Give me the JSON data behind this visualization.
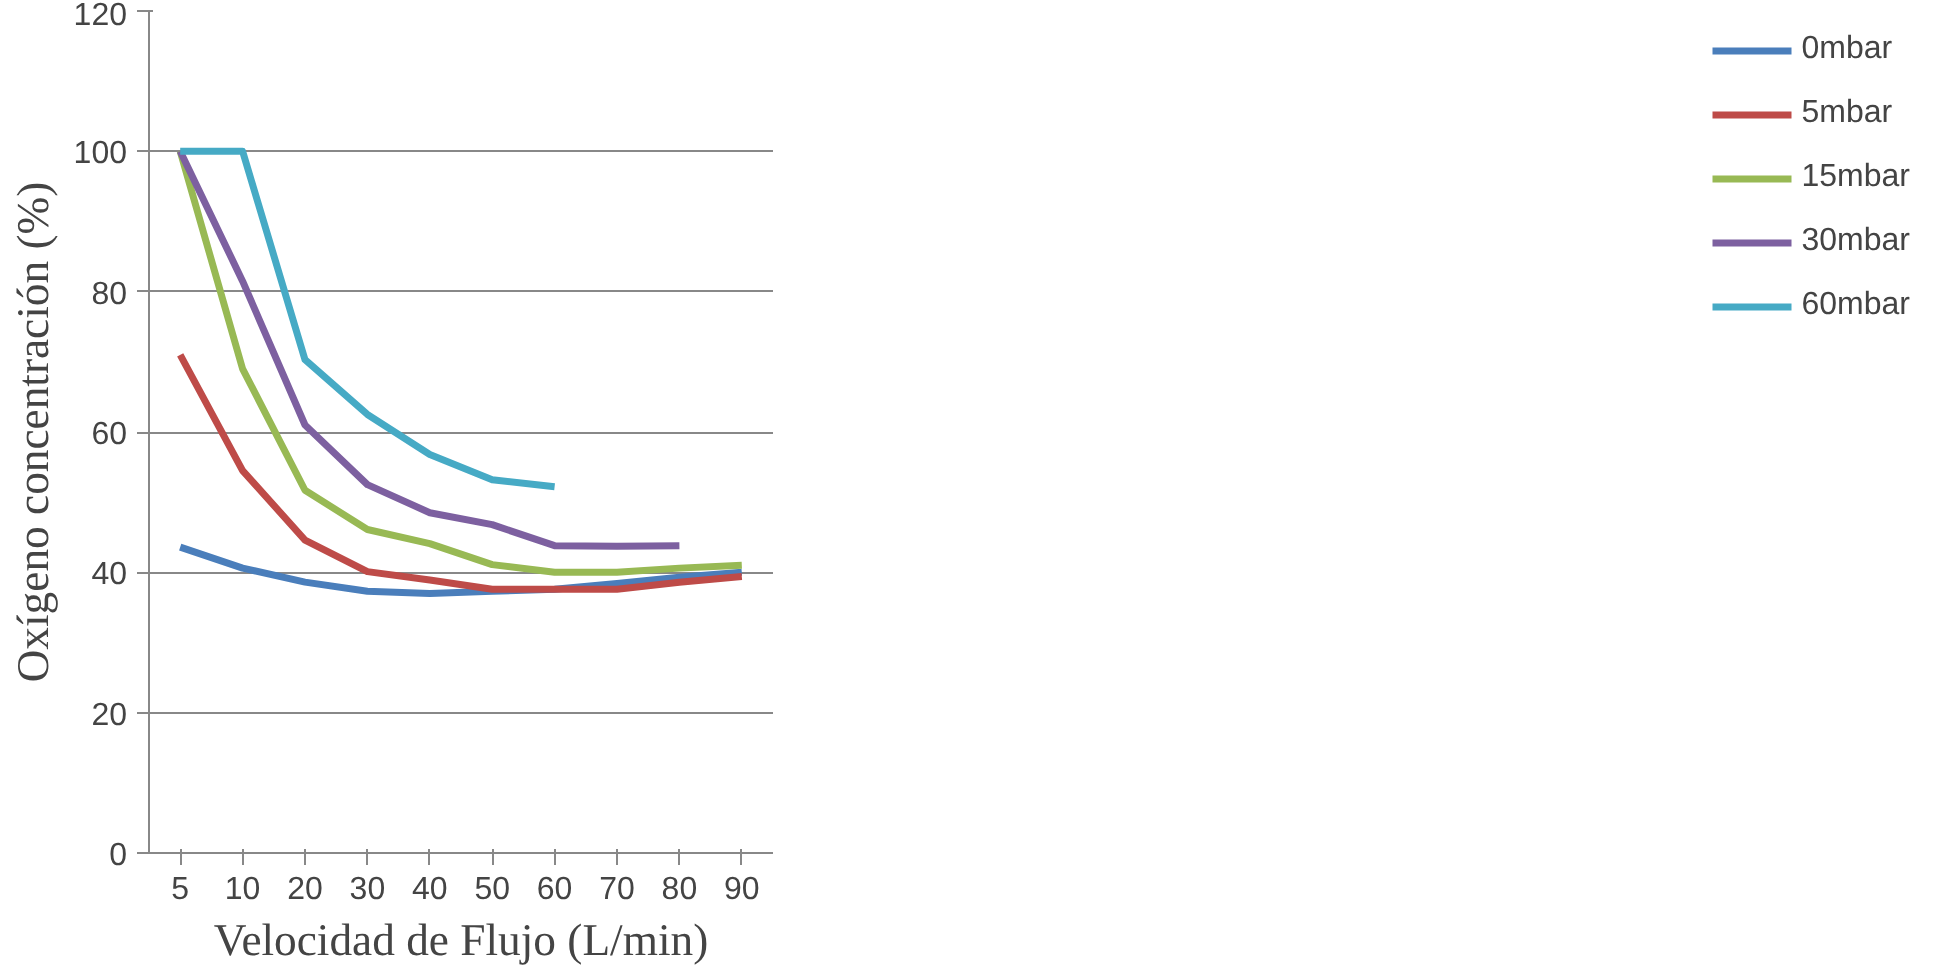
{
  "chart_data": {
    "type": "line",
    "xlabel": "Velocidad de Flujo (L/min)",
    "ylabel": "Oxígeno concentración (%)",
    "categories": [
      "5",
      "10",
      "20",
      "30",
      "40",
      "50",
      "60",
      "70",
      "80",
      "90"
    ],
    "ylim": [
      0,
      120
    ],
    "yticks": [
      0,
      20,
      40,
      60,
      80,
      100,
      120
    ],
    "grid": "y",
    "legend": "right",
    "marker": "none",
    "line_style": "solid",
    "series": [
      {
        "name": "0mbar",
        "color": "#4a7ebb",
        "values": [
          43.6,
          40.6,
          38.6,
          37.3,
          37,
          37.3,
          37.6,
          38.4,
          39.3,
          40
        ]
      },
      {
        "name": "5mbar",
        "color": "#be4b48",
        "values": [
          71,
          54.5,
          44.6,
          40.1,
          38.9,
          37.6,
          37.6,
          37.6,
          38.6,
          39.4
        ]
      },
      {
        "name": "15mbar",
        "color": "#98b954",
        "values": [
          100,
          69,
          51.7,
          46.1,
          44.1,
          41.1,
          40,
          40,
          40.6,
          41
        ]
      },
      {
        "name": "30mbar",
        "color": "#7d60a0",
        "values": [
          100,
          81.5,
          61,
          52.5,
          48.5,
          46.8,
          43.8,
          43.7,
          43.8,
          null
        ]
      },
      {
        "name": "60mbar",
        "color": "#46aac5",
        "values": [
          100,
          100,
          70.3,
          62.5,
          56.8,
          53.2,
          52.2,
          null,
          null,
          null
        ]
      }
    ]
  }
}
